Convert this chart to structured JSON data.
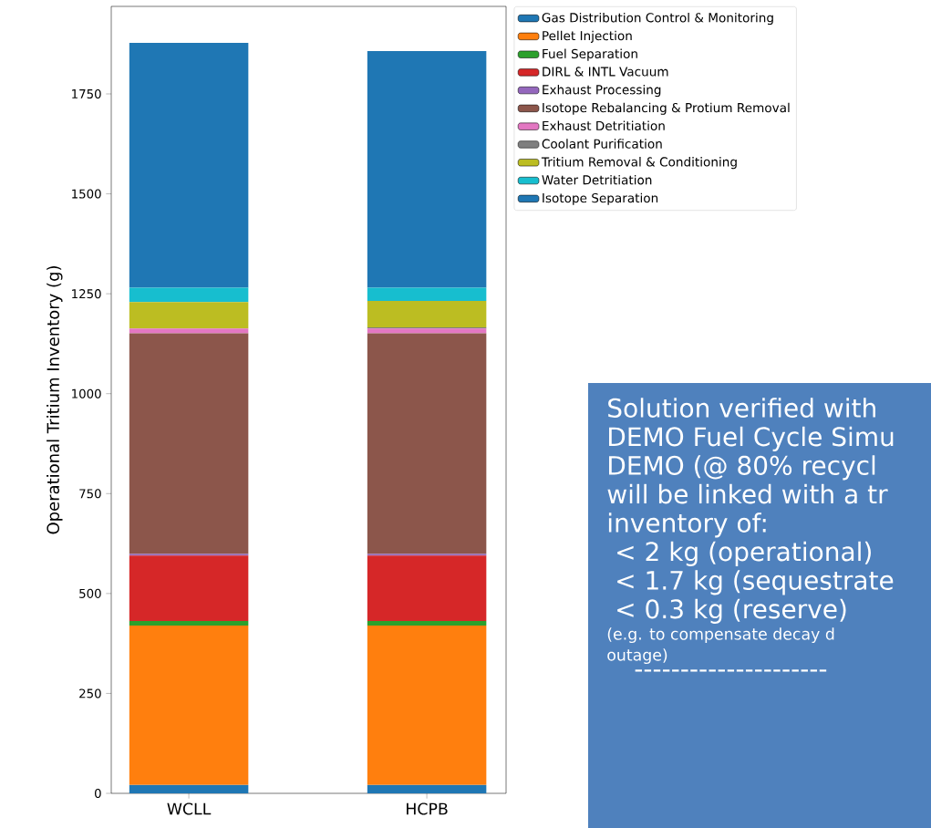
{
  "chart_data": {
    "type": "bar",
    "stacked": true,
    "categories": [
      "WCLL",
      "HCPB"
    ],
    "ylabel": "Operational Tritium Inventory (g)",
    "ylim": [
      0,
      1969
    ],
    "yticks": [
      0,
      250,
      500,
      750,
      1000,
      1250,
      1500,
      1750
    ],
    "legend": "top right",
    "grid": false,
    "series": [
      {
        "name": "Gas Distribution Control & Monitoring",
        "color": "#1f77b4",
        "values": [
          21,
          21
        ]
      },
      {
        "name": "Pellet Injection",
        "color": "#ff7f0e",
        "values": [
          399,
          399
        ]
      },
      {
        "name": "Fuel Separation",
        "color": "#2ca02c",
        "values": [
          11,
          11
        ]
      },
      {
        "name": "DIRL & INTL Vacuum",
        "color": "#d62728",
        "values": [
          164,
          164
        ]
      },
      {
        "name": "Exhaust Processing",
        "color": "#9467bd",
        "values": [
          4,
          4
        ]
      },
      {
        "name": "Isotope Rebalancing & Protium Removal",
        "color": "#8c564b",
        "values": [
          552,
          552
        ]
      },
      {
        "name": "Exhaust Detritiation",
        "color": "#e377c2",
        "values": [
          12,
          12
        ]
      },
      {
        "name": "Coolant Purification",
        "color": "#7f7f7f",
        "values": [
          0,
          3
        ]
      },
      {
        "name": "Tritium Removal & Conditioning",
        "color": "#bcbd22",
        "values": [
          66,
          66
        ]
      },
      {
        "name": "Water Detritiation",
        "color": "#17becf",
        "values": [
          36,
          33
        ]
      },
      {
        "name": "Isotope Separation",
        "color": "#1f77b4",
        "values": [
          613,
          592
        ]
      }
    ],
    "annotations": [
      "Solution verified with",
      "DEMO Fuel Cycle Simu",
      "DEMO (@ 80% recycl",
      "will be linked with a tr",
      "inventory of:",
      " < 2 kg (operational)",
      " < 1.7 kg (sequestrate",
      " < 0.3 kg (reserve)",
      "(e.g. to compensate decay d",
      "outage)",
      "---------------------"
    ]
  }
}
